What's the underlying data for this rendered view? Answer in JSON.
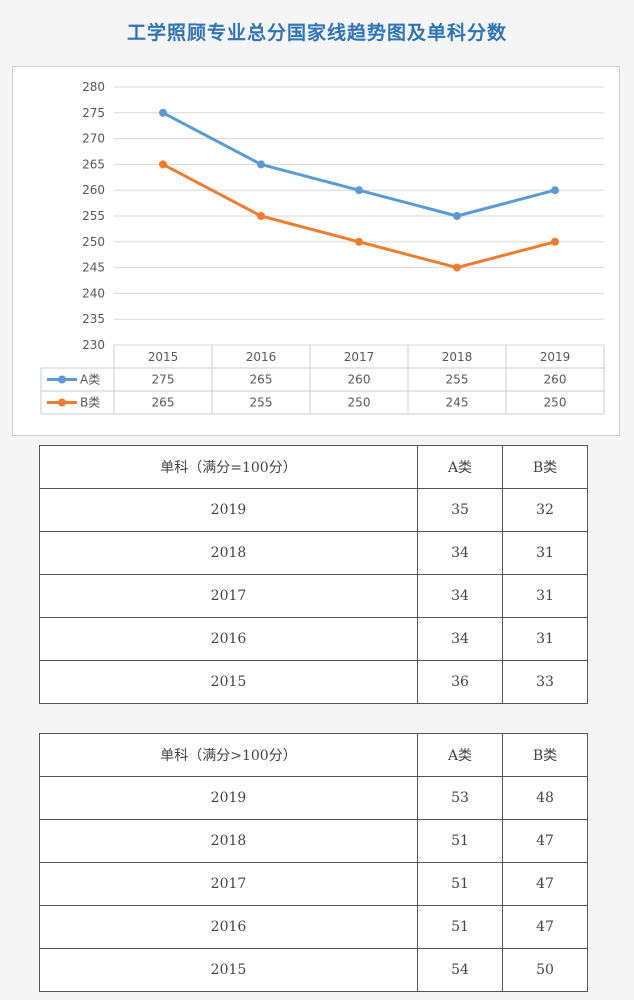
{
  "title": "工学照顾专业总分国家线趋势图及单科分数",
  "chart_data": {
    "type": "line",
    "categories": [
      "2015",
      "2016",
      "2017",
      "2018",
      "2019"
    ],
    "series": [
      {
        "name": "A类",
        "values": [
          275,
          265,
          260,
          255,
          260
        ],
        "color": "#5b9bd5"
      },
      {
        "name": "B类",
        "values": [
          265,
          255,
          250,
          245,
          250
        ],
        "color": "#ed7d31"
      }
    ],
    "ylim": [
      230,
      280
    ],
    "yticks": [
      230,
      235,
      240,
      245,
      250,
      255,
      260,
      265,
      270,
      275,
      280
    ],
    "grid": true,
    "legend": "data-table",
    "title": "",
    "xlabel": "",
    "ylabel": ""
  },
  "table_eq100": {
    "headers": [
      "单科（满分=100分）",
      "A类",
      "B类"
    ],
    "rows": [
      [
        "2019",
        "35",
        "32"
      ],
      [
        "2018",
        "34",
        "31"
      ],
      [
        "2017",
        "34",
        "31"
      ],
      [
        "2016",
        "34",
        "31"
      ],
      [
        "2015",
        "36",
        "33"
      ]
    ]
  },
  "table_gt100": {
    "headers": [
      "单科（满分>100分）",
      "A类",
      "B类"
    ],
    "rows": [
      [
        "2019",
        "53",
        "48"
      ],
      [
        "2018",
        "51",
        "47"
      ],
      [
        "2017",
        "51",
        "47"
      ],
      [
        "2016",
        "51",
        "47"
      ],
      [
        "2015",
        "54",
        "50"
      ]
    ]
  }
}
